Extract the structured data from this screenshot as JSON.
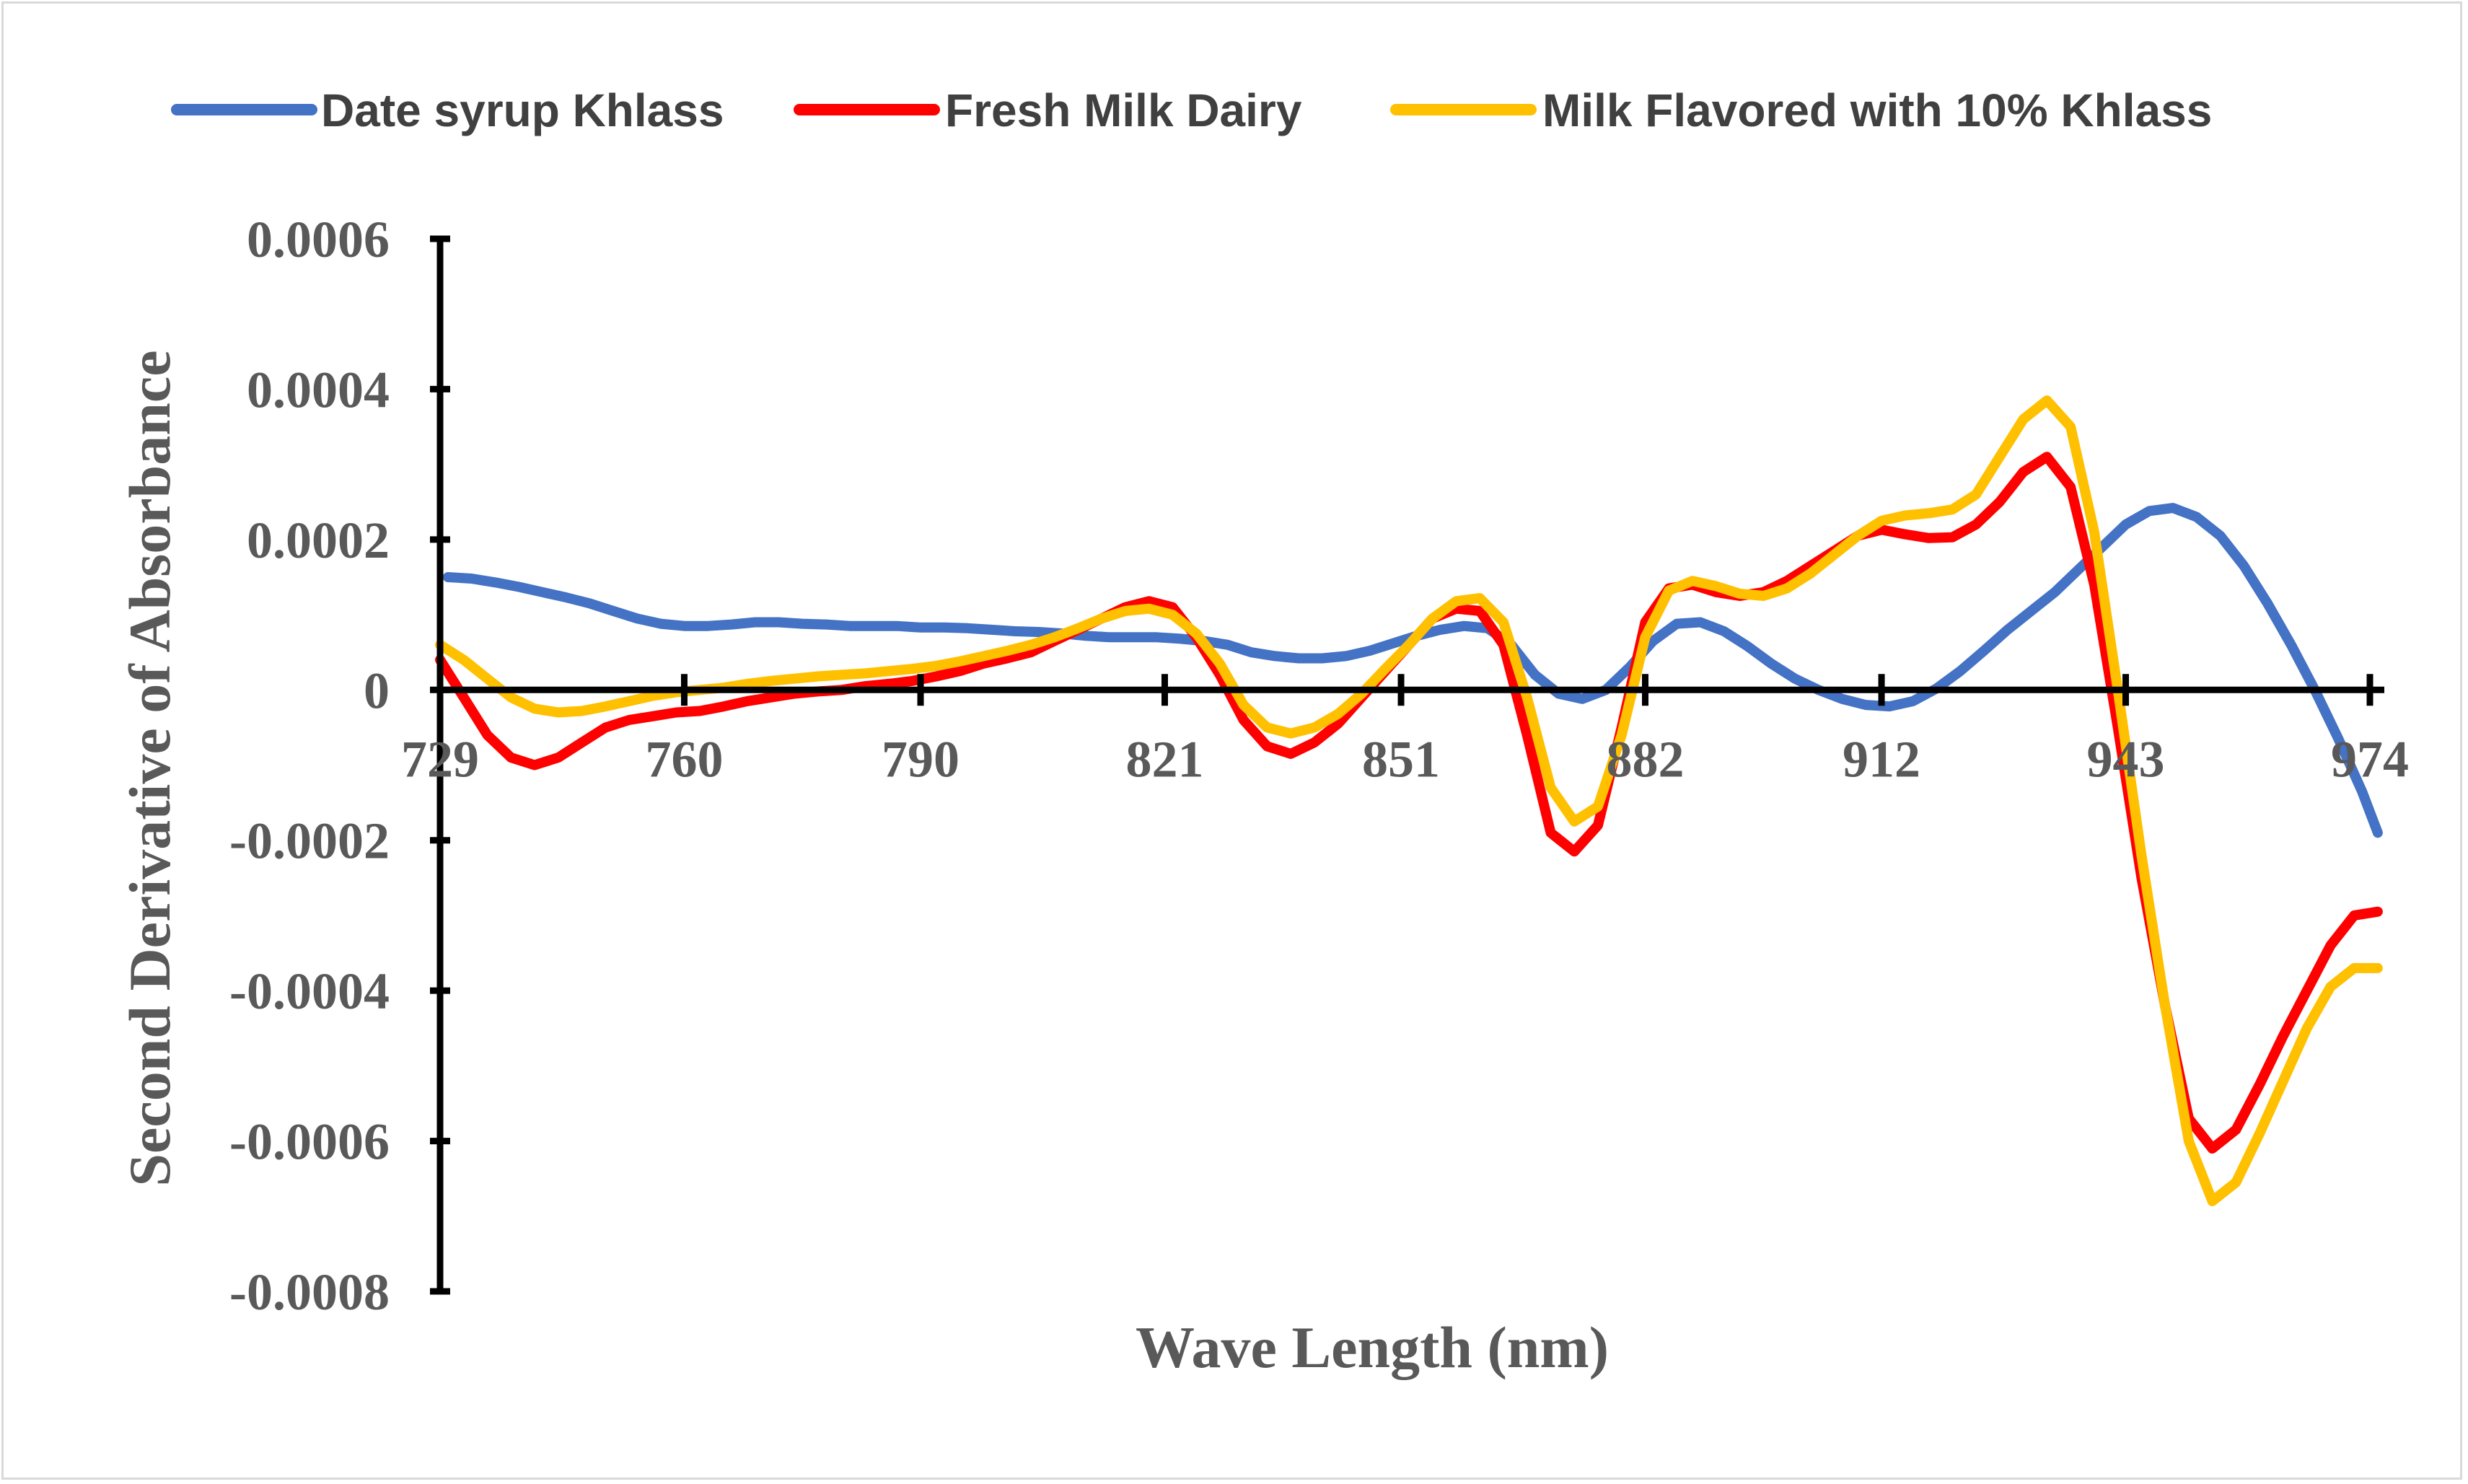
{
  "chart_data": {
    "type": "line",
    "title": "",
    "xlabel": "Wave Length (nm)",
    "ylabel": "Second Derivative of Absorbance",
    "x_tick_labels": [
      "729",
      "760",
      "790",
      "821",
      "851",
      "882",
      "912",
      "943",
      "974"
    ],
    "x_ticks": [
      729,
      760,
      790,
      821,
      851,
      882,
      912,
      943,
      974
    ],
    "xlim": [
      729,
      974
    ],
    "y_tick_labels": [
      "0.0006",
      "0.0004",
      "0.0002",
      "0",
      "-0.0002",
      "-0.0004",
      "-0.0006",
      "-0.0008"
    ],
    "y_ticks": [
      0.0006,
      0.0004,
      0.0002,
      0,
      -0.0002,
      -0.0004,
      -0.0006,
      -0.0008
    ],
    "ylim": [
      -0.0008,
      0.0006
    ],
    "grid": false,
    "legend_position": "top",
    "series": [
      {
        "name": "Date syrup Khlass",
        "color": "#4472c4",
        "x": [
          730,
          733,
          736,
          739,
          742,
          745,
          748,
          751,
          754,
          757,
          760,
          763,
          766,
          769,
          772,
          775,
          778,
          781,
          784,
          787,
          790,
          793,
          796,
          799,
          802,
          805,
          808,
          811,
          814,
          817,
          820,
          823,
          826,
          829,
          832,
          835,
          838,
          841,
          844,
          847,
          850,
          853,
          856,
          859,
          862,
          865,
          868,
          871,
          874,
          877,
          880,
          883,
          886,
          889,
          892,
          895,
          898,
          901,
          904,
          907,
          910,
          913,
          916,
          919,
          922,
          925,
          928,
          931,
          934,
          937,
          940,
          943,
          946,
          949,
          952,
          955,
          958,
          961,
          964,
          967,
          970,
          973,
          975
        ],
        "y": [
          0.00015,
          0.000148,
          0.000143,
          0.000137,
          0.00013,
          0.000123,
          0.000115,
          0.000105,
          9.5e-05,
          8.8e-05,
          8.5e-05,
          8.5e-05,
          8.7e-05,
          9e-05,
          9e-05,
          8.8e-05,
          8.7e-05,
          8.5e-05,
          8.5e-05,
          8.5e-05,
          8.3e-05,
          8.3e-05,
          8.2e-05,
          8e-05,
          7.8e-05,
          7.7e-05,
          7.5e-05,
          7.2e-05,
          7e-05,
          7e-05,
          7e-05,
          6.8e-05,
          6.5e-05,
          6e-05,
          5e-05,
          4.5e-05,
          4.2e-05,
          4.2e-05,
          4.5e-05,
          5.2e-05,
          6.2e-05,
          7.2e-05,
          8e-05,
          8.5e-05,
          8.2e-05,
          6e-05,
          2e-05,
          -5e-06,
          -1.2e-05,
          0.0,
          3e-05,
          6.5e-05,
          8.8e-05,
          9e-05,
          7.8e-05,
          5.8e-05,
          3.5e-05,
          1.5e-05,
          0.0,
          -1.2e-05,
          -2e-05,
          -2.2e-05,
          -1.5e-05,
          2e-06,
          2.5e-05,
          5.2e-05,
          8e-05,
          0.000105,
          0.00013,
          0.00016,
          0.00019,
          0.00022,
          0.000238,
          0.000242,
          0.00023,
          0.000205,
          0.000165,
          0.000115,
          6e-05,
          0.0,
          -6.5e-05,
          -0.000135,
          -0.00019
        ]
      },
      {
        "name": "Fresh Milk Dairy",
        "color": "#ff0000",
        "x": [
          729,
          732,
          735,
          738,
          741,
          744,
          747,
          750,
          753,
          756,
          759,
          762,
          765,
          768,
          771,
          774,
          777,
          780,
          783,
          786,
          789,
          792,
          795,
          798,
          801,
          804,
          807,
          810,
          813,
          816,
          819,
          822,
          825,
          828,
          831,
          834,
          837,
          840,
          843,
          846,
          849,
          852,
          855,
          858,
          861,
          864,
          867,
          870,
          873,
          876,
          879,
          882,
          885,
          888,
          891,
          894,
          897,
          900,
          903,
          906,
          909,
          912,
          915,
          918,
          921,
          924,
          927,
          930,
          933,
          936,
          939,
          942,
          945,
          948,
          951,
          954,
          957,
          960,
          963,
          966,
          969,
          972,
          975
        ],
        "y": [
          4e-05,
          -1e-05,
          -6e-05,
          -9e-05,
          -0.0001,
          -9e-05,
          -7e-05,
          -5e-05,
          -4e-05,
          -3.5e-05,
          -3e-05,
          -2.8e-05,
          -2.2e-05,
          -1.5e-05,
          -1e-05,
          -5e-06,
          -2e-06,
          0.0,
          5e-06,
          8e-06,
          1.2e-05,
          1.8e-05,
          2.5e-05,
          3.5e-05,
          4.2e-05,
          5e-05,
          6.5e-05,
          8e-05,
          9.5e-05,
          0.00011,
          0.000118,
          0.00011,
          7e-05,
          2e-05,
          -4e-05,
          -7.5e-05,
          -8.5e-05,
          -7e-05,
          -4.5e-05,
          -1e-05,
          2.5e-05,
          6e-05,
          9.5e-05,
          0.000108,
          0.000105,
          6e-05,
          -6e-05,
          -0.00019,
          -0.000215,
          -0.00018,
          -5e-05,
          9e-05,
          0.000135,
          0.00014,
          0.00013,
          0.000125,
          0.00013,
          0.000145,
          0.000165,
          0.000185,
          0.000205,
          0.000213,
          0.000207,
          0.000202,
          0.000203,
          0.00022,
          0.00025,
          0.00029,
          0.00031,
          0.00027,
          0.00014,
          -5e-05,
          -0.00025,
          -0.00042,
          -0.00057,
          -0.00061,
          -0.000585,
          -0.000525,
          -0.00046,
          -0.0004,
          -0.00034,
          -0.0003,
          -0.000295
        ]
      },
      {
        "name": "Milk Flavored with 10% Khlass",
        "color": "#ffc000",
        "x": [
          729,
          732,
          735,
          738,
          741,
          744,
          747,
          750,
          753,
          756,
          759,
          762,
          765,
          768,
          771,
          774,
          777,
          780,
          783,
          786,
          789,
          792,
          795,
          798,
          801,
          804,
          807,
          810,
          813,
          816,
          819,
          822,
          825,
          828,
          831,
          834,
          837,
          840,
          843,
          846,
          849,
          852,
          855,
          858,
          861,
          864,
          867,
          870,
          873,
          876,
          879,
          882,
          885,
          888,
          891,
          894,
          897,
          900,
          903,
          906,
          909,
          912,
          915,
          918,
          921,
          924,
          927,
          930,
          933,
          936,
          939,
          942,
          945,
          948,
          951,
          954,
          957,
          960,
          963,
          966,
          969,
          972,
          975
        ],
        "y": [
          6e-05,
          4e-05,
          1.5e-05,
          -1e-05,
          -2.5e-05,
          -3e-05,
          -2.8e-05,
          -2.2e-05,
          -1.5e-05,
          -8e-06,
          -3e-06,
          0.0,
          3e-06,
          8e-06,
          1.2e-05,
          1.5e-05,
          1.8e-05,
          2e-05,
          2.2e-05,
          2.5e-05,
          2.8e-05,
          3.2e-05,
          3.8e-05,
          4.5e-05,
          5.2e-05,
          6e-05,
          7e-05,
          8.2e-05,
          9.5e-05,
          0.000105,
          0.000108,
          0.0001,
          7.5e-05,
          3.5e-05,
          -2e-05,
          -5e-05,
          -5.8e-05,
          -5e-05,
          -3.2e-05,
          -5e-06,
          2.8e-05,
          6e-05,
          9.5e-05,
          0.000118,
          0.000122,
          9e-05,
          -1e-05,
          -0.00013,
          -0.000175,
          -0.000155,
          -6e-05,
          7e-05,
          0.000132,
          0.000145,
          0.000138,
          0.000128,
          0.000125,
          0.000135,
          0.000155,
          0.00018,
          0.000205,
          0.000225,
          0.000232,
          0.000235,
          0.00024,
          0.00026,
          0.00031,
          0.00036,
          0.000385,
          0.00035,
          0.00021,
          0.0,
          -0.00022,
          -0.00042,
          -0.0006,
          -0.00068,
          -0.000655,
          -0.00059,
          -0.00052,
          -0.00045,
          -0.000395,
          -0.00037,
          -0.00037
        ]
      }
    ]
  }
}
